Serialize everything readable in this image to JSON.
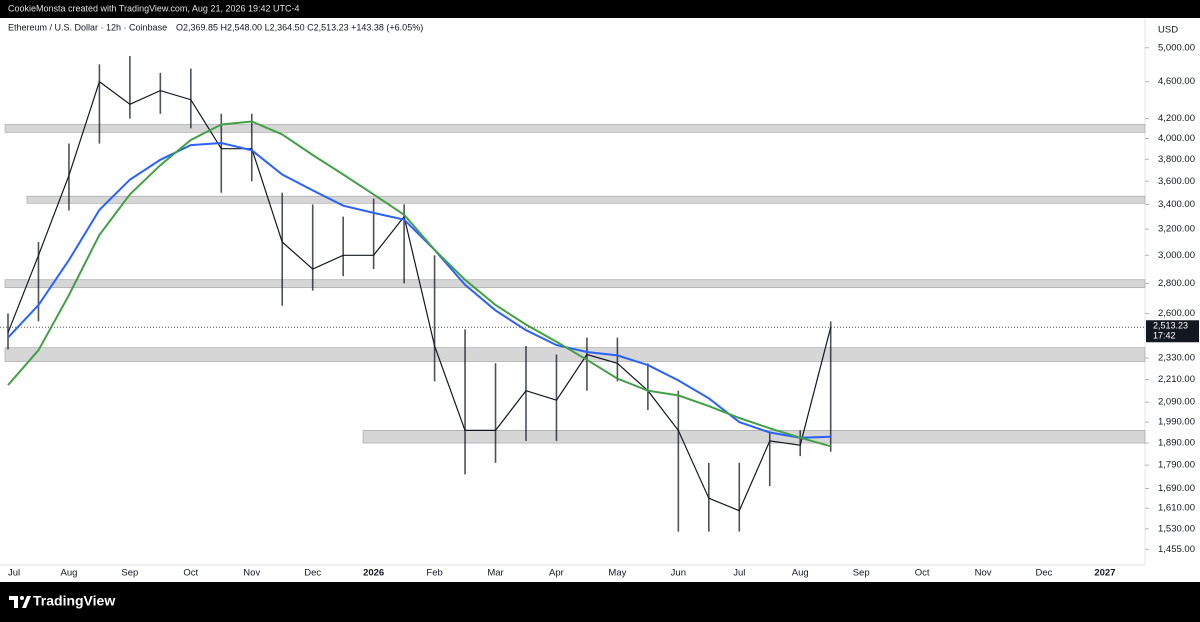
{
  "header": {
    "credit": "CookieMonsta created with TradingView.com, Aug 21, 2026 19:42 UTC-4",
    "symbol": "Ethereum / U.S. Dollar · 12h · Coinbase",
    "ohlc": "O2,369.85 H2,548.00 L2,364.50 C2,513.23 +143.38 (+6.05%)"
  },
  "footer": {
    "brand": "TradingView"
  },
  "chart_data": {
    "type": "candle-line",
    "currency": "USD",
    "log_scale": true,
    "categories": [
      "Jul",
      null,
      "Aug",
      null,
      "Sep",
      null,
      "Oct",
      null,
      "Nov",
      null,
      "Dec",
      null,
      "2026",
      null,
      "Feb",
      null,
      "Mar",
      null,
      "Apr",
      null,
      "May",
      null,
      "Jun",
      null,
      "Jul",
      null,
      "Aug",
      null,
      "Sep",
      null,
      "Oct",
      null,
      "Nov",
      null,
      "Dec",
      null,
      "2027"
    ],
    "close": [
      2480,
      3000,
      3650,
      4600,
      4350,
      4500,
      4400,
      3900,
      3900,
      3100,
      2900,
      3000,
      3000,
      3300,
      2400,
      1950,
      1950,
      2150,
      2100,
      2350,
      2300,
      2150,
      1950,
      1650,
      1600,
      1900,
      1880,
      2513.23,
      null,
      null,
      null,
      null,
      null,
      null,
      null,
      null,
      null
    ],
    "high": [
      2600,
      3100,
      3950,
      4800,
      4900,
      4700,
      4750,
      4250,
      4250,
      3500,
      3400,
      3300,
      3450,
      3400,
      3000,
      2500,
      2300,
      2400,
      2350,
      2450,
      2450,
      2300,
      2150,
      1800,
      1800,
      1940,
      1950,
      2550,
      null,
      null,
      null,
      null,
      null,
      null,
      null,
      null,
      null
    ],
    "low": [
      2380,
      2550,
      3350,
      3950,
      4200,
      4250,
      4100,
      3500,
      3600,
      2650,
      2750,
      2850,
      2900,
      2800,
      2200,
      1750,
      1800,
      1900,
      1900,
      2150,
      2200,
      2050,
      1520,
      1520,
      1520,
      1700,
      1830,
      1850,
      null,
      null,
      null,
      null,
      null,
      null,
      null,
      null,
      null
    ],
    "price_color": "#131722",
    "series": [
      {
        "color": "#2962ff",
        "values": [
          2450,
          2655,
          2965,
          3355,
          3615,
          3795,
          3935,
          3955,
          3885,
          3660,
          3520,
          3390,
          3330,
          3275,
          3040,
          2790,
          2620,
          2495,
          2405,
          2365,
          2345,
          2290,
          2205,
          2110,
          1990,
          1940,
          1915,
          1920,
          null,
          null,
          null,
          null,
          null,
          null,
          null,
          null,
          null
        ]
      },
      {
        "color": "#43a047",
        "values": [
          2180,
          2375,
          2720,
          3155,
          3485,
          3745,
          3985,
          4140,
          4170,
          4040,
          3840,
          3660,
          3485,
          3315,
          3040,
          2825,
          2655,
          2530,
          2425,
          2320,
          2215,
          2150,
          2125,
          2070,
          2010,
          1960,
          1915,
          1875,
          null,
          null,
          null,
          null,
          null,
          null,
          null,
          null,
          null
        ]
      }
    ],
    "zones": [
      {
        "low": 4060,
        "high": 4140
      },
      {
        "low": 3410,
        "high": 3470
      },
      {
        "low": 2770,
        "high": 2825
      },
      {
        "low": 2310,
        "high": 2390
      },
      {
        "low": 1890,
        "high": 1950
      }
    ],
    "zone_color": "#d6d6d6",
    "last_price": {
      "value": 2513.23,
      "label": "2,513.23"
    },
    "countdown": "17:42",
    "ylim": [
      1400,
      5380
    ],
    "yticks": [
      {
        "value": 5000,
        "label": "5,000.00"
      },
      {
        "value": 4600,
        "label": "4,600.00"
      },
      {
        "value": 4200,
        "label": "4,200.00"
      },
      {
        "value": 4000,
        "label": "4,000.00"
      },
      {
        "value": 3800,
        "label": "3,800.00"
      },
      {
        "value": 3600,
        "label": "3,600.00"
      },
      {
        "value": 3400,
        "label": "3,400.00"
      },
      {
        "value": 3200,
        "label": "3,200.00"
      },
      {
        "value": 3000,
        "label": "3,000.00"
      },
      {
        "value": 2800,
        "label": "2,800.00"
      },
      {
        "value": 2600,
        "label": "2,600.00"
      },
      {
        "value": 2330,
        "label": "2,330.00"
      },
      {
        "value": 2210,
        "label": "2,210.00"
      },
      {
        "value": 2090,
        "label": "2,090.00"
      },
      {
        "value": 1990,
        "label": "1,990.00"
      },
      {
        "value": 1890,
        "label": "1,890.00"
      },
      {
        "value": 1790,
        "label": "1,790.00"
      },
      {
        "value": 1690,
        "label": "1,690.00"
      },
      {
        "value": 1610,
        "label": "1,610.00"
      },
      {
        "value": 1530,
        "label": "1,530.00"
      },
      {
        "value": 1455,
        "label": "1,455.00"
      }
    ],
    "grid": false
  }
}
